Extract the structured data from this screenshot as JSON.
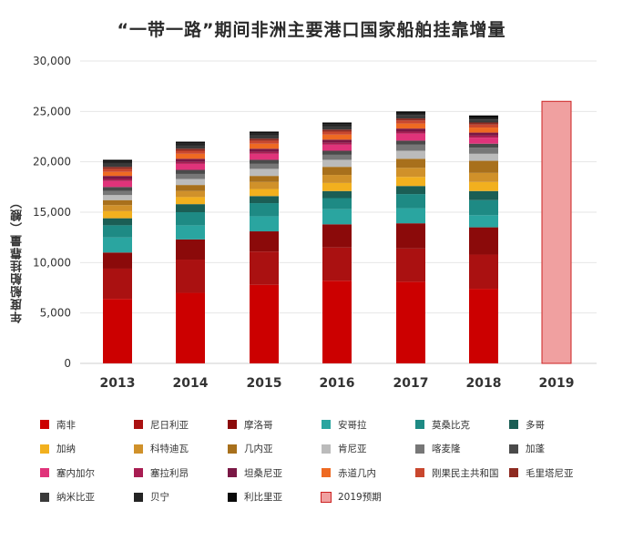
{
  "title": "“一带一路”期间非洲主要港口国家船舶挂靠增量",
  "chart_data": {
    "type": "bar",
    "stacked": true,
    "title": "“一带一路”期间非洲主要港口国家船舶挂靠增量",
    "xlabel": "",
    "ylabel": "年度船舶挂靠量（艘）",
    "ylim": [
      0,
      30000
    ],
    "yticks": [
      0,
      5000,
      10000,
      15000,
      20000,
      25000,
      30000
    ],
    "ytick_labels": [
      "0",
      "5,000",
      "10,000",
      "15,000",
      "20,000",
      "25,000",
      "30,000"
    ],
    "grid": true,
    "legend_position": "bottom",
    "categories": [
      "2013",
      "2014",
      "2015",
      "2016",
      "2017",
      "2018",
      "2019"
    ],
    "series": [
      {
        "name": "南非",
        "color": "#cc0000",
        "values": [
          6400,
          7000,
          7800,
          8200,
          8100,
          7400,
          null
        ]
      },
      {
        "name": "尼日利亚",
        "color": "#aa1111",
        "values": [
          3000,
          3300,
          3300,
          3300,
          3300,
          3400,
          null
        ]
      },
      {
        "name": "摩洛哥",
        "color": "#8b0a0a",
        "values": [
          1600,
          2000,
          2000,
          2300,
          2500,
          2700,
          null
        ]
      },
      {
        "name": "安哥拉",
        "color": "#2aa5a0",
        "values": [
          1500,
          1400,
          1500,
          1500,
          1500,
          1200,
          null
        ]
      },
      {
        "name": "莫桑比克",
        "color": "#1e8a84",
        "values": [
          1200,
          1300,
          1300,
          1100,
          1400,
          1500,
          null
        ]
      },
      {
        "name": "多哥",
        "color": "#1b5e55",
        "values": [
          700,
          800,
          700,
          700,
          800,
          900,
          null
        ]
      },
      {
        "name": "加纳",
        "color": "#f2b01e",
        "values": [
          700,
          700,
          700,
          800,
          900,
          900,
          null
        ]
      },
      {
        "name": "科特迪瓦",
        "color": "#d0912a",
        "values": [
          600,
          600,
          700,
          800,
          900,
          900,
          null
        ]
      },
      {
        "name": "几内亚",
        "color": "#a8701c",
        "values": [
          500,
          600,
          600,
          800,
          900,
          1200,
          null
        ]
      },
      {
        "name": "肯尼亚",
        "color": "#bbbbbb",
        "values": [
          500,
          600,
          700,
          700,
          800,
          700,
          null
        ]
      },
      {
        "name": "喀麦隆",
        "color": "#777777",
        "values": [
          400,
          500,
          500,
          500,
          600,
          600,
          null
        ]
      },
      {
        "name": "加蓬",
        "color": "#4a4a4a",
        "values": [
          400,
          400,
          400,
          400,
          400,
          400,
          null
        ]
      },
      {
        "name": "塞内加尔",
        "color": "#e0337a",
        "values": [
          600,
          600,
          600,
          600,
          700,
          600,
          null
        ]
      },
      {
        "name": "塞拉利昂",
        "color": "#a81d52",
        "values": [
          200,
          200,
          200,
          200,
          200,
          200,
          null
        ]
      },
      {
        "name": "坦桑尼亚",
        "color": "#7a1745",
        "values": [
          300,
          300,
          300,
          300,
          300,
          300,
          null
        ]
      },
      {
        "name": "赤道几内",
        "color": "#ee6a22",
        "values": [
          400,
          500,
          500,
          500,
          500,
          500,
          null
        ]
      },
      {
        "name": "刚果民主共和国",
        "color": "#c9472e",
        "values": [
          300,
          300,
          300,
          300,
          300,
          300,
          null
        ]
      },
      {
        "name": "毛里塔尼亚",
        "color": "#8e2a20",
        "values": [
          200,
          200,
          200,
          200,
          200,
          200,
          null
        ]
      },
      {
        "name": "纳米比亚",
        "color": "#3a3a3a",
        "values": [
          300,
          300,
          300,
          300,
          300,
          300,
          null
        ]
      },
      {
        "name": "贝宁",
        "color": "#242424",
        "values": [
          200,
          200,
          200,
          200,
          200,
          200,
          null
        ]
      },
      {
        "name": "利比里亚",
        "color": "#0a0a0a",
        "values": [
          200,
          200,
          200,
          200,
          200,
          200,
          null
        ]
      },
      {
        "name": "2019预期",
        "color": "#f0a0a0",
        "edge_color": "#cc2222",
        "values": [
          null,
          null,
          null,
          null,
          null,
          null,
          26000
        ]
      }
    ]
  }
}
